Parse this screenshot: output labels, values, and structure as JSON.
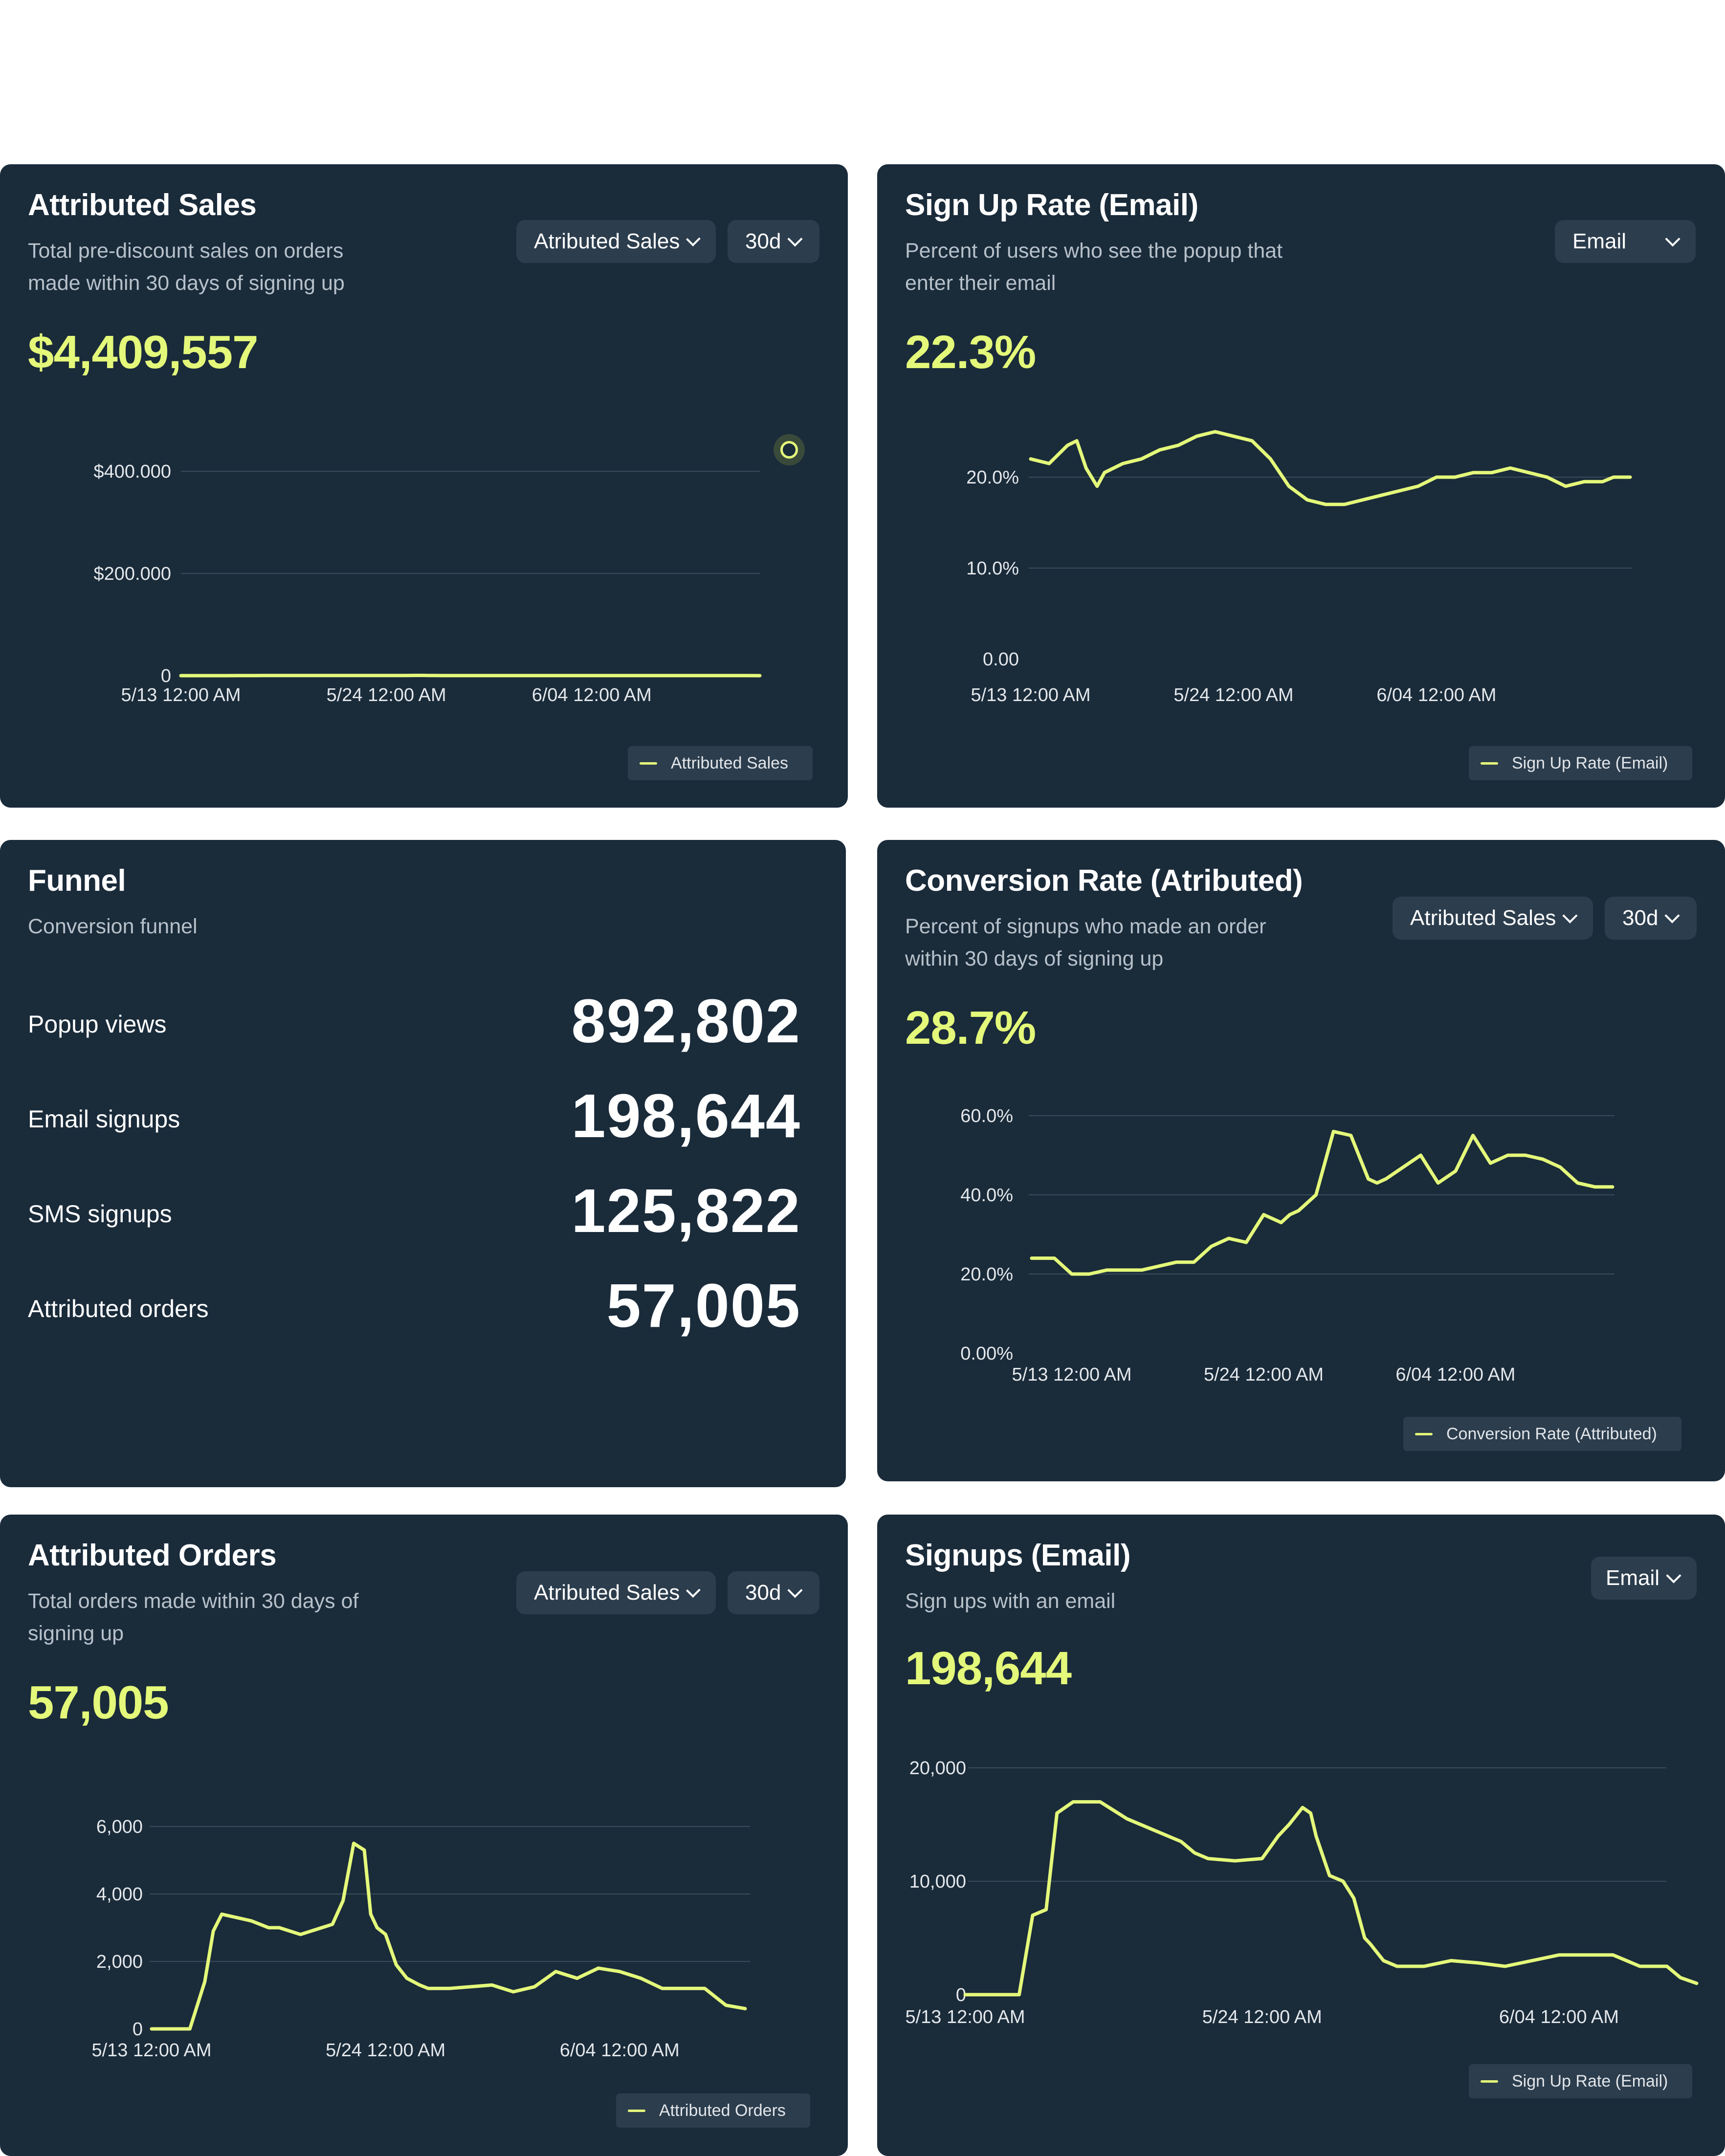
{
  "colors": {
    "card_bg": "#1a2b3a",
    "accent": "#e4f87a",
    "control_bg": "#2c3d4d",
    "grid": "#3a4b5b"
  },
  "cards": {
    "sales": {
      "title": "Attributed Sales",
      "subtitle": "Total pre-discount sales on orders made within 30 days of signing up",
      "value": "$4,409,557",
      "metric_select": "Atributed Sales",
      "range_select": "30d",
      "legend": "Attributed Sales"
    },
    "signup_rate": {
      "title": "Sign Up Rate (Email)",
      "subtitle": "Percent of users who see the popup that enter their email",
      "value": "22.3%",
      "channel_select": "Email",
      "legend": "Sign Up Rate (Email)"
    },
    "funnel": {
      "title": "Funnel",
      "subtitle": "Conversion funnel",
      "rows": [
        {
          "label": "Popup views",
          "value": "892,802"
        },
        {
          "label": "Email signups",
          "value": "198,644"
        },
        {
          "label": "SMS signups",
          "value": "125,822"
        },
        {
          "label": "Attributed orders",
          "value": "57,005"
        }
      ]
    },
    "conversion": {
      "title": "Conversion Rate (Atributed)",
      "subtitle": "Percent of signups who made an order within 30 days of signing up",
      "value": "28.7%",
      "metric_select": "Atributed Sales",
      "range_select": "30d",
      "legend": "Conversion Rate (Attributed)"
    },
    "orders": {
      "title": "Attributed Orders",
      "subtitle": "Total orders made within 30 days of signing up",
      "value": "57,005",
      "metric_select": "Atributed Sales",
      "range_select": "30d",
      "legend": "Attributed Orders"
    },
    "signups": {
      "title": "Signups (Email)",
      "subtitle": "Sign ups with an email",
      "value": "198,644",
      "channel_select": "Email",
      "legend": "Sign Up Rate (Email)"
    }
  },
  "chart_data": [
    {
      "id": "sales",
      "type": "line",
      "title": "Attributed Sales",
      "series_name": "Attributed Sales",
      "x_tick_labels": [
        "5/13 12:00 AM",
        "5/24 12:00 AM",
        "6/04 12:00 AM"
      ],
      "x_tick_days": [
        0,
        11,
        22
      ],
      "x_range": [
        0,
        31
      ],
      "y_ticks": [
        0,
        200000,
        400000
      ],
      "y_tick_labels": [
        "0",
        "$200.000",
        "$400.000"
      ],
      "ylim": [
        0,
        400000
      ],
      "x": [
        0,
        2,
        2.5,
        3,
        4,
        4.3,
        5.5,
        6,
        8,
        9,
        10,
        11,
        12,
        12.3,
        12.6,
        13,
        13.3,
        14,
        15,
        16,
        17,
        18,
        19,
        20,
        21,
        22,
        23,
        24,
        25,
        26,
        27,
        28,
        29,
        30,
        31
      ],
      "y": [
        0,
        0,
        40,
        80,
        100,
        200,
        240,
        215,
        215,
        205,
        220,
        240,
        310,
        360,
        465,
        460,
        285,
        130,
        90,
        77,
        78,
        78,
        78,
        77,
        66,
        68,
        95,
        130,
        128,
        137,
        120,
        100,
        75,
        70,
        35
      ]
    },
    {
      "id": "signup_rate",
      "type": "line",
      "title": "Sign Up Rate (Email)",
      "series_name": "Sign Up Rate (Email)",
      "x_tick_labels": [
        "5/13 12:00 AM",
        "5/24 12:00 AM",
        "6/04 12:00 AM"
      ],
      "x_tick_days": [
        0,
        11,
        22
      ],
      "x_range": [
        0,
        32.5
      ],
      "y_ticks": [
        0,
        10,
        20
      ],
      "y_tick_labels": [
        "0.00",
        "10.0%",
        "20.0%"
      ],
      "ylim": [
        0,
        20
      ],
      "x": [
        0,
        1,
        2,
        2.5,
        3,
        3.6,
        4,
        5,
        6,
        7,
        8,
        9,
        10,
        11,
        12,
        13,
        14,
        15,
        16,
        17,
        18,
        19,
        20,
        21,
        22,
        23,
        24,
        25,
        26,
        27,
        28,
        29,
        30,
        31,
        31.6,
        32.5
      ],
      "y": [
        22,
        21.5,
        23.5,
        24,
        21,
        19,
        20.5,
        21.5,
        22,
        23,
        23.5,
        24.5,
        25,
        24.5,
        24,
        22,
        19,
        17.5,
        17,
        17,
        17.5,
        18,
        18.5,
        19,
        20,
        20,
        20.5,
        20.5,
        21,
        20.5,
        20,
        19,
        19.5,
        19.5,
        20,
        20
      ]
    },
    {
      "id": "conversion",
      "type": "line",
      "title": "Conversion Rate (Atributed)",
      "series_name": "Conversion Rate (Attributed)",
      "x_tick_labels": [
        "5/13 12:00 AM",
        "5/24 12:00 AM",
        "6/04 12:00 AM"
      ],
      "x_tick_days": [
        0,
        11,
        22
      ],
      "x_range": [
        -2.3,
        31
      ],
      "y_ticks": [
        0,
        20,
        40,
        60
      ],
      "y_tick_labels": [
        "0.00%",
        "20.0%",
        "40.0%",
        "60.0%"
      ],
      "ylim": [
        0,
        60
      ],
      "x": [
        -2.3,
        -1,
        0,
        1,
        2,
        3,
        4,
        5,
        6,
        7,
        8,
        9,
        10,
        11,
        12,
        12.5,
        13,
        14,
        15,
        16,
        17,
        17.5,
        18,
        19,
        20,
        21,
        22,
        23,
        24,
        25,
        26,
        27,
        28,
        29,
        30,
        31
      ],
      "y": [
        24,
        24,
        20,
        20,
        21,
        21,
        21,
        22,
        23,
        23,
        27,
        29,
        28,
        35,
        33,
        35,
        36,
        40,
        56,
        55,
        44,
        43,
        44,
        47,
        50,
        43,
        46,
        55,
        48,
        50,
        50,
        49,
        47,
        43,
        42,
        42
      ]
    },
    {
      "id": "orders",
      "type": "line",
      "title": "Attributed Orders",
      "series_name": "Attributed Orders",
      "x_tick_labels": [
        "5/13 12:00 AM",
        "5/24 12:00 AM",
        "6/04 12:00 AM"
      ],
      "x_tick_days": [
        0,
        11,
        22
      ],
      "x_range": [
        0,
        27.9
      ],
      "y_ticks": [
        0,
        2000,
        4000,
        6000
      ],
      "y_tick_labels": [
        "0",
        "2,000",
        "4,000",
        "6,000"
      ],
      "ylim": [
        0,
        6000
      ],
      "x": [
        0,
        1.8,
        2.5,
        2.9,
        3.3,
        4.7,
        5.5,
        6,
        7,
        8,
        8.5,
        9,
        9.5,
        10,
        10.3,
        10.6,
        11,
        11.5,
        12,
        12.6,
        13,
        14,
        15,
        16,
        17,
        18,
        19,
        20,
        21,
        22,
        23,
        24,
        25,
        26,
        27,
        27.9
      ],
      "y": [
        0,
        0,
        1400,
        2900,
        3400,
        3200,
        3000,
        3000,
        2800,
        3000,
        3100,
        3800,
        5500,
        5300,
        3400,
        3000,
        2800,
        1900,
        1500,
        1300,
        1200,
        1200,
        1250,
        1300,
        1100,
        1250,
        1700,
        1500,
        1800,
        1700,
        1500,
        1200,
        1200,
        1200,
        700,
        600
      ]
    },
    {
      "id": "signups",
      "type": "line",
      "title": "Signups (Email)",
      "series_name": "Sign Up Rate (Email)",
      "x_tick_labels": [
        "5/13 12:00 AM",
        "5/24 12:00 AM",
        "6/04 12:00 AM"
      ],
      "x_tick_days": [
        0,
        11,
        22
      ],
      "x_range": [
        0,
        27.1
      ],
      "y_ticks": [
        0,
        10000,
        20000
      ],
      "y_tick_labels": [
        "0",
        "10,000",
        "20,000"
      ],
      "ylim": [
        0,
        20000
      ],
      "x": [
        0,
        2,
        2.5,
        3,
        3.4,
        4,
        5,
        6,
        6.5,
        7,
        8,
        8.5,
        9,
        10,
        11,
        11.6,
        12,
        12.5,
        12.8,
        13,
        13.5,
        14,
        14.4,
        14.8,
        15,
        15.5,
        16,
        17,
        18,
        19,
        20,
        22,
        24,
        25,
        26,
        26.5,
        27.1
      ],
      "y": [
        0,
        0,
        7000,
        7500,
        16000,
        17000,
        17000,
        15500,
        15000,
        14500,
        13500,
        12500,
        12000,
        11800,
        12000,
        14000,
        15000,
        16500,
        16000,
        14000,
        10500,
        10000,
        8500,
        5000,
        4500,
        3000,
        2500,
        2500,
        3000,
        2800,
        2500,
        3500,
        3500,
        2500,
        2500,
        1500,
        1000
      ]
    }
  ]
}
